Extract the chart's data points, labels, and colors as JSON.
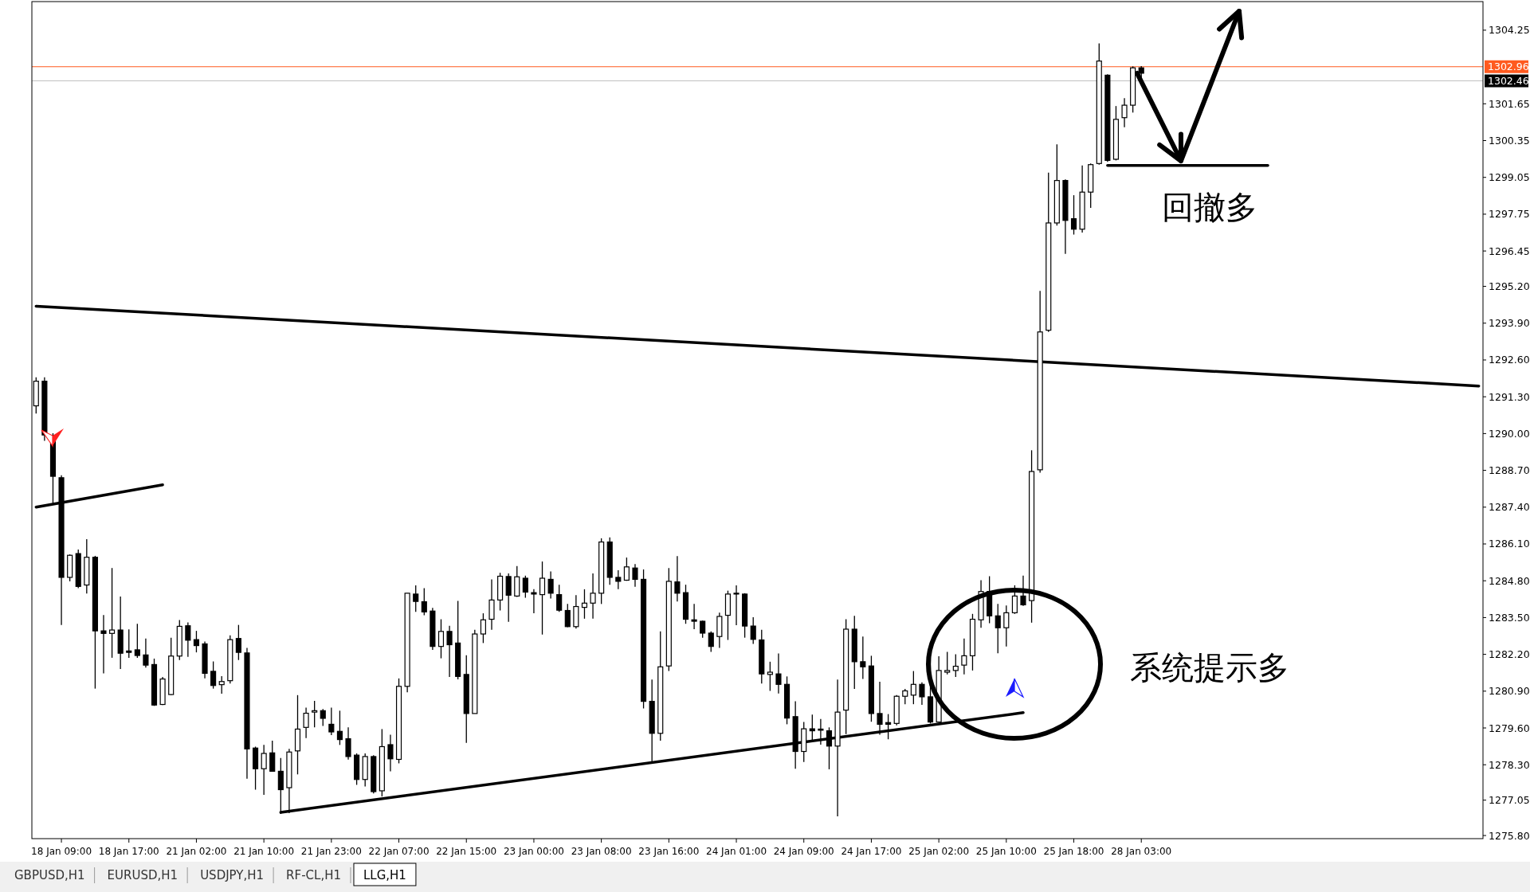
{
  "chart_data": {
    "type": "candlestick",
    "categories": [
      null,
      null,
      null,
      "18 Jan 09:00",
      null,
      null,
      null,
      null,
      null,
      null,
      null,
      "18 Jan 17:00",
      null,
      null,
      null,
      null,
      null,
      null,
      null,
      "21 Jan 02:00",
      null,
      null,
      null,
      null,
      null,
      null,
      null,
      "21 Jan 10:00",
      null,
      null,
      null,
      null,
      null,
      null,
      null,
      "21 Jan 23:00",
      null,
      null,
      null,
      null,
      null,
      null,
      null,
      "22 Jan 07:00",
      null,
      null,
      null,
      null,
      null,
      null,
      null,
      "22 Jan 15:00",
      null,
      null,
      null,
      null,
      null,
      null,
      null,
      "23 Jan 00:00",
      null,
      null,
      null,
      null,
      null,
      null,
      null,
      "23 Jan 08:00",
      null,
      null,
      null,
      null,
      null,
      null,
      null,
      "23 Jan 16:00",
      null,
      null,
      null,
      null,
      null,
      null,
      null,
      "24 Jan 01:00",
      null,
      null,
      null,
      null,
      null,
      null,
      null,
      "24 Jan 09:00",
      null,
      null,
      null,
      null,
      null,
      null,
      null,
      "24 Jan 17:00",
      null,
      null,
      null,
      null,
      null,
      null,
      null,
      "25 Jan 02:00",
      null,
      null,
      null,
      null,
      null,
      null,
      null,
      "25 Jan 10:00",
      null,
      null,
      null,
      null,
      null,
      null,
      null,
      "25 Jan 18:00",
      null,
      null,
      null,
      null,
      null,
      null,
      null,
      "28 Jan 03:00",
      null,
      null,
      null,
      null,
      null,
      null,
      null,
      null,
      null,
      null,
      null,
      null,
      null,
      null,
      null,
      null,
      null,
      null,
      null,
      null,
      null,
      null,
      null,
      null,
      null,
      null,
      null,
      null,
      null,
      null,
      null,
      null,
      null,
      null,
      null,
      null,
      null,
      null,
      null,
      null
    ],
    "ohlc": [
      [
        1290.98,
        1291.99,
        1290.71,
        1291.85
      ],
      [
        1291.85,
        1291.99,
        1289.74,
        1289.95
      ],
      [
        1289.93,
        1290.01,
        1287.52,
        1288.49
      ],
      [
        1288.44,
        1288.53,
        1283.24,
        1284.92
      ],
      [
        1284.92,
        1285.73,
        1284.78,
        1285.7
      ],
      [
        1285.76,
        1285.9,
        1284.54,
        1284.6
      ],
      [
        1284.65,
        1286.27,
        1284.35,
        1285.63
      ],
      [
        1285.63,
        1285.68,
        1280.99,
        1283.03
      ],
      [
        1283.03,
        1283.59,
        1281.53,
        1282.94
      ],
      [
        1282.94,
        1285.25,
        1282.08,
        1283.06
      ],
      [
        1283.06,
        1284.24,
        1281.68,
        1282.24
      ],
      [
        1282.32,
        1283.08,
        1282.08,
        1282.27
      ],
      [
        1282.36,
        1283.28,
        1282.08,
        1282.16
      ],
      [
        1282.18,
        1282.76,
        1281.73,
        1281.82
      ],
      [
        1281.84,
        1282.05,
        1280.38,
        1280.41
      ],
      [
        1280.43,
        1281.4,
        1280.41,
        1281.33
      ],
      [
        1280.78,
        1282.79,
        1280.76,
        1282.14
      ],
      [
        1282.14,
        1283.41,
        1282.0,
        1283.19
      ],
      [
        1283.21,
        1283.33,
        1282.11,
        1282.7
      ],
      [
        1282.72,
        1283.03,
        1282.27,
        1282.51
      ],
      [
        1282.57,
        1282.65,
        1281.35,
        1281.53
      ],
      [
        1281.6,
        1281.95,
        1280.99,
        1281.1
      ],
      [
        1281.13,
        1281.43,
        1280.81,
        1281.24
      ],
      [
        1281.27,
        1282.87,
        1281.17,
        1282.72
      ],
      [
        1282.76,
        1283.24,
        1282.0,
        1282.27
      ],
      [
        1282.25,
        1282.43,
        1277.81,
        1278.86
      ],
      [
        1278.89,
        1278.94,
        1277.42,
        1278.16
      ],
      [
        1278.16,
        1279.0,
        1277.24,
        1278.7
      ],
      [
        1278.72,
        1279.15,
        1278.05,
        1278.07
      ],
      [
        1278.07,
        1278.54,
        1276.56,
        1277.42
      ],
      [
        1277.49,
        1278.86,
        1276.59,
        1278.75
      ],
      [
        1278.79,
        1280.76,
        1277.96,
        1279.56
      ],
      [
        1279.62,
        1280.32,
        1279.24,
        1280.12
      ],
      [
        1280.16,
        1280.56,
        1279.62,
        1280.21
      ],
      [
        1280.21,
        1280.27,
        1279.67,
        1279.94
      ],
      [
        1279.73,
        1280.32,
        1279.35,
        1279.46
      ],
      [
        1279.48,
        1280.21,
        1279.0,
        1279.19
      ],
      [
        1279.22,
        1279.62,
        1278.48,
        1278.59
      ],
      [
        1278.64,
        1278.7,
        1277.59,
        1277.78
      ],
      [
        1277.78,
        1278.7,
        1277.53,
        1278.59
      ],
      [
        1278.59,
        1278.64,
        1277.29,
        1277.35
      ],
      [
        1277.38,
        1279.56,
        1277.18,
        1278.94
      ],
      [
        1279.01,
        1279.36,
        1278.07,
        1278.51
      ],
      [
        1278.49,
        1281.35,
        1278.35,
        1281.07
      ],
      [
        1281.07,
        1284.36,
        1280.86,
        1284.36
      ],
      [
        1284.33,
        1284.64,
        1283.7,
        1284.07
      ],
      [
        1284.06,
        1284.54,
        1283.58,
        1283.7
      ],
      [
        1283.73,
        1283.84,
        1282.36,
        1282.48
      ],
      [
        1282.48,
        1283.44,
        1282.06,
        1283.01
      ],
      [
        1283.01,
        1283.21,
        1281.4,
        1282.54
      ],
      [
        1282.6,
        1284.09,
        1281.32,
        1281.42
      ],
      [
        1281.49,
        1282.17,
        1279.07,
        1280.11
      ],
      [
        1280.11,
        1283.07,
        1280.11,
        1282.92
      ],
      [
        1282.92,
        1283.65,
        1282.6,
        1283.42
      ],
      [
        1283.44,
        1284.85,
        1283.07,
        1284.12
      ],
      [
        1284.12,
        1285.08,
        1283.75,
        1284.96
      ],
      [
        1284.95,
        1285.06,
        1283.35,
        1284.29
      ],
      [
        1284.26,
        1285.32,
        1284.23,
        1284.94
      ],
      [
        1284.89,
        1284.98,
        1284.2,
        1284.4
      ],
      [
        1284.38,
        1284.5,
        1283.65,
        1284.33
      ],
      [
        1284.31,
        1285.48,
        1282.9,
        1284.89
      ],
      [
        1284.85,
        1285.13,
        1284.17,
        1284.36
      ],
      [
        1284.31,
        1284.66,
        1283.7,
        1283.76
      ],
      [
        1283.75,
        1283.98,
        1283.16,
        1283.18
      ],
      [
        1283.18,
        1284.29,
        1283.11,
        1283.89
      ],
      [
        1283.86,
        1284.5,
        1283.46,
        1284.01
      ],
      [
        1284.01,
        1285.06,
        1283.46,
        1284.36
      ],
      [
        1284.36,
        1286.3,
        1283.98,
        1286.17
      ],
      [
        1286.17,
        1286.33,
        1284.66,
        1284.92
      ],
      [
        1284.92,
        1285.17,
        1284.5,
        1284.78
      ],
      [
        1284.82,
        1285.62,
        1284.8,
        1285.29
      ],
      [
        1285.25,
        1285.39,
        1284.59,
        1284.85
      ],
      [
        1284.85,
        1285.2,
        1280.29,
        1280.54
      ],
      [
        1280.54,
        1281.31,
        1278.42,
        1279.41
      ],
      [
        1279.41,
        1283.01,
        1279.15,
        1281.76
      ],
      [
        1281.79,
        1285.25,
        1281.61,
        1284.78
      ],
      [
        1284.76,
        1285.67,
        1284.07,
        1284.36
      ],
      [
        1284.38,
        1284.66,
        1283.28,
        1283.44
      ],
      [
        1283.42,
        1283.98,
        1283.09,
        1283.37
      ],
      [
        1283.37,
        1283.39,
        1282.79,
        1282.95
      ],
      [
        1282.95,
        1283.01,
        1282.29,
        1282.48
      ],
      [
        1282.83,
        1283.67,
        1282.43,
        1283.54
      ],
      [
        1283.58,
        1284.45,
        1282.71,
        1284.33
      ],
      [
        1284.36,
        1284.64,
        1283.23,
        1284.33
      ],
      [
        1284.33,
        1284.36,
        1282.79,
        1283.2
      ],
      [
        1283.2,
        1283.51,
        1282.57,
        1282.73
      ],
      [
        1282.71,
        1283.07,
        1281.17,
        1281.51
      ],
      [
        1281.49,
        1281.94,
        1280.91,
        1281.57
      ],
      [
        1281.51,
        1282.23,
        1280.82,
        1281.14
      ],
      [
        1281.14,
        1281.42,
        1279.73,
        1279.95
      ],
      [
        1280.0,
        1280.54,
        1278.16,
        1278.77
      ],
      [
        1278.77,
        1279.81,
        1278.4,
        1279.57
      ],
      [
        1279.57,
        1280.07,
        1279.13,
        1279.5
      ],
      [
        1279.56,
        1279.92,
        1279.01,
        1279.52
      ],
      [
        1279.5,
        1279.62,
        1278.14,
        1278.96
      ],
      [
        1278.96,
        1281.31,
        1276.48,
        1280.16
      ],
      [
        1280.23,
        1283.44,
        1279.38,
        1283.09
      ],
      [
        1283.09,
        1283.56,
        1280.98,
        1281.94
      ],
      [
        1281.94,
        1282.83,
        1281.33,
        1281.76
      ],
      [
        1281.79,
        1282.15,
        1279.82,
        1280.11
      ],
      [
        1280.11,
        1281.23,
        1279.36,
        1279.73
      ],
      [
        1279.79,
        1280.09,
        1279.2,
        1279.73
      ],
      [
        1279.76,
        1280.76,
        1279.69,
        1280.72
      ],
      [
        1280.72,
        1280.98,
        1280.44,
        1280.91
      ],
      [
        1280.76,
        1281.61,
        1280.44,
        1281.14
      ],
      [
        1281.14,
        1281.21,
        1280.42,
        1280.7
      ],
      [
        1280.7,
        1282.1,
        1279.76,
        1279.81
      ],
      [
        1279.81,
        1282.13,
        1279.79,
        1281.63
      ],
      [
        1281.57,
        1282.29,
        1281.49,
        1281.63
      ],
      [
        1281.63,
        1282.2,
        1281.4,
        1281.78
      ],
      [
        1281.82,
        1282.76,
        1281.49,
        1282.15
      ],
      [
        1282.15,
        1283.63,
        1281.63,
        1283.44
      ],
      [
        1283.42,
        1284.82,
        1283.14,
        1284.42
      ],
      [
        1284.42,
        1284.96,
        1283.3,
        1283.56
      ],
      [
        1283.56,
        1283.98,
        1282.24,
        1283.14
      ],
      [
        1283.14,
        1283.93,
        1282.48,
        1283.67
      ],
      [
        1283.67,
        1284.64,
        1283.63,
        1284.26
      ],
      [
        1284.26,
        1284.98,
        1283.91,
        1283.95
      ],
      [
        1284.1,
        1289.41,
        1283.32,
        1288.66
      ],
      [
        1288.72,
        1295.04,
        1288.62,
        1293.59
      ],
      [
        1293.65,
        1299.22,
        1293.59,
        1297.44
      ],
      [
        1297.44,
        1300.22,
        1297.35,
        1298.94
      ],
      [
        1298.94,
        1298.98,
        1296.35,
        1297.53
      ],
      [
        1297.59,
        1298.42,
        1297.03,
        1297.22
      ],
      [
        1297.22,
        1299.47,
        1297.1,
        1298.53
      ],
      [
        1298.53,
        1299.54,
        1297.97,
        1299.5
      ],
      [
        1299.54,
        1303.78,
        1299.5,
        1303.16
      ],
      [
        1302.66,
        1302.69,
        1299.6,
        1299.65
      ],
      [
        1299.69,
        1301.57,
        1299.65,
        1301.1
      ],
      [
        1301.16,
        1301.85,
        1300.82,
        1301.6
      ],
      [
        1301.6,
        1302.97,
        1301.34,
        1302.92
      ],
      [
        1302.92,
        1302.98,
        1302.46,
        1302.73
      ],
      null,
      null,
      null,
      null,
      null,
      null,
      null,
      null,
      null,
      null,
      null,
      null,
      null,
      null,
      null,
      null,
      null,
      null,
      null,
      null,
      null,
      null,
      null,
      null,
      null,
      null,
      null,
      null,
      null,
      null,
      null,
      null,
      null,
      null,
      null,
      null,
      null,
      null,
      null,
      null
    ],
    "ylim": [
      1275.69,
      1305.26
    ],
    "yticks": [
      1304.25,
      1301.65,
      1300.35,
      1299.05,
      1297.75,
      1296.45,
      {
        "value": 1295.2,
        "label": "1295.20"
      },
      {
        "value": 1293.9,
        "label": "1293.90"
      },
      {
        "value": 1292.6,
        "label": "1292.60"
      },
      {
        "value": 1291.3,
        "label": "1291.30"
      },
      {
        "value": 1290,
        "label": "1290.00"
      },
      {
        "value": 1288.7,
        "label": "1288.70"
      },
      {
        "value": 1287.4,
        "label": "1287.40"
      },
      {
        "value": 1286.1,
        "label": "1286.10"
      },
      {
        "value": 1284.8,
        "label": "1284.80"
      },
      {
        "value": 1283.5,
        "label": "1283.50"
      },
      {
        "value": 1282.2,
        "label": "1282.20"
      },
      {
        "value": 1280.9,
        "label": "1280.90"
      },
      {
        "value": 1279.6,
        "label": "1279.60"
      },
      {
        "value": 1278.3,
        "label": "1278.30"
      },
      1277.05,
      {
        "value": 1275.8,
        "label": "1275.80"
      }
    ],
    "series": [
      {
        "type": "line",
        "color": "#000000",
        "values": [
          1294.5,
          null,
          null,
          null,
          null,
          null,
          null,
          null,
          null,
          null,
          null,
          null,
          null,
          null,
          null,
          null,
          null,
          null,
          null,
          null,
          null,
          null,
          null,
          null,
          null,
          null,
          null,
          null,
          null,
          null,
          null,
          null,
          null,
          null,
          null,
          null,
          null,
          null,
          null,
          null,
          null,
          null,
          null,
          null,
          null,
          null,
          null,
          null,
          null,
          null,
          null,
          null,
          null,
          null,
          null,
          null,
          null,
          null,
          null,
          null,
          null,
          null,
          null,
          null,
          null,
          null,
          null,
          null,
          null,
          null,
          null,
          null,
          null,
          null,
          null,
          null,
          null,
          null,
          null,
          null,
          null,
          null,
          null,
          null,
          null,
          null,
          null,
          null,
          null,
          null,
          null,
          null,
          null,
          null,
          null,
          null,
          null,
          null,
          null,
          null,
          null,
          null,
          null,
          null,
          null,
          null,
          null,
          null,
          null,
          null,
          null,
          null,
          null,
          null,
          null,
          null,
          null,
          null,
          null,
          null,
          null,
          null,
          null,
          null,
          null,
          null,
          null,
          null,
          null,
          null,
          null,
          null,
          null,
          null,
          null,
          null,
          null,
          null,
          null,
          null,
          null,
          null,
          null,
          null,
          null,
          null,
          null,
          null,
          null,
          null,
          null,
          null,
          null,
          null,
          null,
          null,
          null,
          null,
          null,
          null,
          null,
          null,
          null,
          null,
          null,
          null,
          null,
          null,
          null,
          null,
          null,
          1291.68
        ]
      },
      {
        "type": "line",
        "color": "#000000",
        "values": [
          1287.4,
          null,
          null,
          null,
          null,
          null,
          null,
          null,
          null,
          null,
          null,
          null,
          null,
          null,
          null,
          1288.19,
          null,
          null,
          null,
          null,
          null,
          null,
          null,
          null,
          null,
          null,
          null,
          null,
          null,
          null,
          null,
          null,
          null,
          null,
          null,
          null,
          null,
          null,
          null,
          null,
          null,
          null,
          null,
          null,
          null,
          null,
          null,
          null,
          null,
          null,
          null,
          null,
          null,
          null,
          null,
          null,
          null,
          null,
          null,
          null,
          null,
          null,
          null,
          null,
          null,
          null,
          null,
          null,
          null,
          null,
          null,
          null,
          null,
          null,
          null,
          null,
          null,
          null,
          null,
          null,
          null,
          null,
          null,
          null,
          null,
          null,
          null,
          null,
          null,
          null,
          null,
          null,
          null,
          null,
          null,
          null,
          null,
          null,
          null,
          null,
          null,
          null,
          null,
          null,
          null,
          null,
          null,
          null,
          null,
          null,
          null,
          null,
          null,
          null,
          null,
          null,
          null,
          null,
          null,
          null,
          null,
          null,
          null,
          null,
          null,
          null,
          null,
          null,
          null,
          null,
          null,
          null,
          null,
          null,
          null,
          null,
          null,
          null,
          null,
          null,
          null,
          null,
          null,
          null,
          null,
          null,
          null,
          null,
          null,
          null,
          null,
          null,
          null,
          null,
          null,
          null,
          null,
          null,
          null,
          null,
          null,
          null,
          null,
          null,
          null,
          null,
          null,
          null,
          null,
          null,
          null,
          null
        ]
      },
      {
        "type": "line",
        "color": "#000000",
        "values": [
          null,
          null,
          null,
          null,
          null,
          null,
          null,
          null,
          null,
          null,
          null,
          null,
          null,
          null,
          null,
          null,
          null,
          null,
          null,
          null,
          null,
          null,
          null,
          null,
          null,
          null,
          null,
          null,
          null,
          1276.62,
          null,
          null,
          null,
          null,
          null,
          null,
          null,
          null,
          null,
          null,
          null,
          null,
          null,
          null,
          null,
          null,
          null,
          null,
          null,
          null,
          null,
          null,
          null,
          null,
          null,
          null,
          null,
          null,
          null,
          null,
          null,
          null,
          null,
          null,
          null,
          null,
          null,
          null,
          null,
          null,
          null,
          null,
          null,
          null,
          null,
          null,
          null,
          null,
          null,
          null,
          null,
          null,
          null,
          null,
          null,
          null,
          null,
          null,
          null,
          null,
          null,
          null,
          null,
          null,
          null,
          null,
          null,
          null,
          null,
          null,
          null,
          null,
          null,
          null,
          null,
          null,
          null,
          null,
          null,
          null,
          null,
          null,
          null,
          null,
          null,
          null,
          null,
          1280.14,
          null,
          null,
          null,
          null,
          null,
          null,
          null,
          null,
          null,
          null,
          null,
          null,
          null,
          null,
          null,
          null,
          null,
          null,
          null,
          null,
          null,
          null,
          null,
          null,
          null,
          null,
          null,
          null,
          null,
          null,
          null,
          null,
          null,
          null,
          null,
          null,
          null,
          null,
          null,
          null,
          null,
          null,
          null,
          null,
          null,
          null,
          null,
          null,
          null,
          null,
          null,
          null,
          null,
          null
        ]
      },
      {
        "type": "line",
        "color": "#000000",
        "values": [
          null,
          null,
          null,
          null,
          null,
          null,
          null,
          null,
          null,
          null,
          null,
          null,
          null,
          null,
          null,
          null,
          null,
          null,
          null,
          null,
          null,
          null,
          null,
          null,
          null,
          null,
          null,
          null,
          null,
          null,
          null,
          null,
          null,
          null,
          null,
          null,
          null,
          null,
          null,
          null,
          null,
          null,
          null,
          null,
          null,
          null,
          null,
          null,
          null,
          null,
          null,
          null,
          null,
          null,
          null,
          null,
          null,
          null,
          null,
          null,
          null,
          null,
          null,
          null,
          null,
          null,
          null,
          null,
          null,
          null,
          null,
          null,
          null,
          null,
          null,
          null,
          null,
          null,
          null,
          null,
          null,
          null,
          null,
          null,
          null,
          null,
          null,
          null,
          null,
          null,
          null,
          null,
          null,
          null,
          null,
          null,
          null,
          null,
          null,
          null,
          null,
          null,
          null,
          null,
          null,
          null,
          null,
          null,
          null,
          null,
          null,
          null,
          null,
          null,
          null,
          null,
          null,
          null,
          null,
          null,
          null,
          null,
          null,
          null,
          null,
          null,
          null,
          1299.47,
          null,
          null,
          null,
          null,
          null,
          null,
          null,
          null,
          null,
          null,
          null,
          null,
          null,
          null,
          null,
          null,
          null,
          null,
          1299.47,
          null,
          null,
          null,
          null,
          null,
          null,
          null,
          null,
          null,
          null,
          null,
          null,
          null,
          null,
          null,
          null,
          null,
          null,
          null,
          null,
          null,
          null,
          null,
          null,
          null
        ]
      }
    ],
    "ref_lines": [
      {
        "axis": "y",
        "value": 1302.96,
        "label": "1302.96",
        "color": "#ff5a1f",
        "line_style": "solid"
      },
      {
        "axis": "y",
        "value": 1302.46,
        "label": "1302.46",
        "color": "#c0c0c0",
        "line_style": "solid"
      }
    ],
    "annotations": [
      "回撤多",
      "系统提示多",
      "GBPUSD,H1",
      "EURUSD,H1",
      "USDJPY,H1",
      "RF-CL,H1",
      "LLG,H1"
    ]
  }
}
